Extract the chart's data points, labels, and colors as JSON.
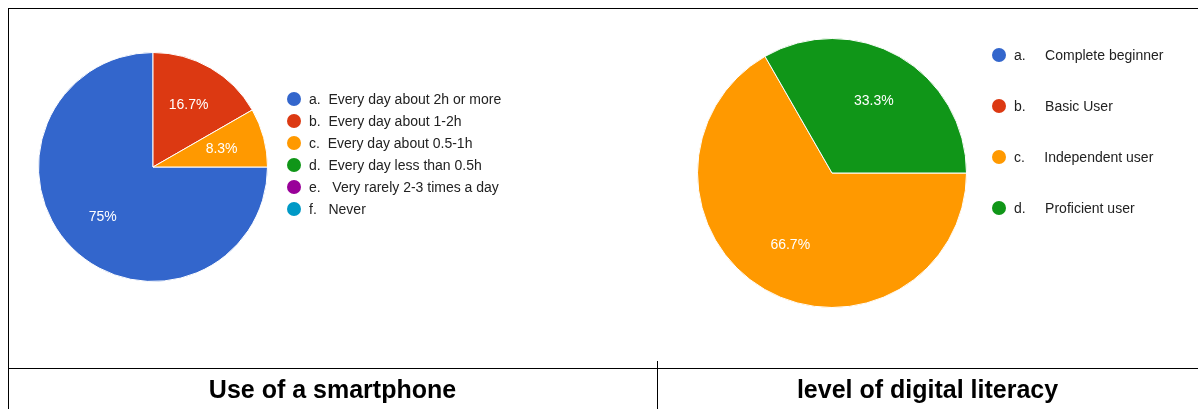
{
  "chart_data": [
    {
      "type": "pie",
      "title": "Use of a smartphone",
      "legend": "right",
      "categories": [
        "a.  Every day about 2h or more",
        "b.  Every day about 1-2h",
        "c.  Every day about 0.5-1h",
        "d.  Every day less than 0.5h",
        "e.   Very rarely 2-3 times a day",
        "f.   Never"
      ],
      "values": [
        75,
        16.7,
        8.3,
        0,
        0,
        0
      ],
      "colors": [
        "#3366cc",
        "#dc3912",
        "#ff9900",
        "#109618",
        "#990099",
        "#0099c6"
      ],
      "value_labels": [
        "75%",
        "16.7%",
        "8.3%",
        null,
        null,
        null
      ]
    },
    {
      "type": "pie",
      "title": "level of digital literacy",
      "legend": "right",
      "categories": [
        "a.     Complete beginner",
        "b.     Basic User",
        "c.     Independent user",
        "d.     Proficient user"
      ],
      "values": [
        0,
        0,
        66.7,
        33.3
      ],
      "colors": [
        "#3366cc",
        "#dc3912",
        "#ff9900",
        "#109618"
      ],
      "value_labels": [
        null,
        null,
        "66.7%",
        "33.3%"
      ]
    }
  ]
}
